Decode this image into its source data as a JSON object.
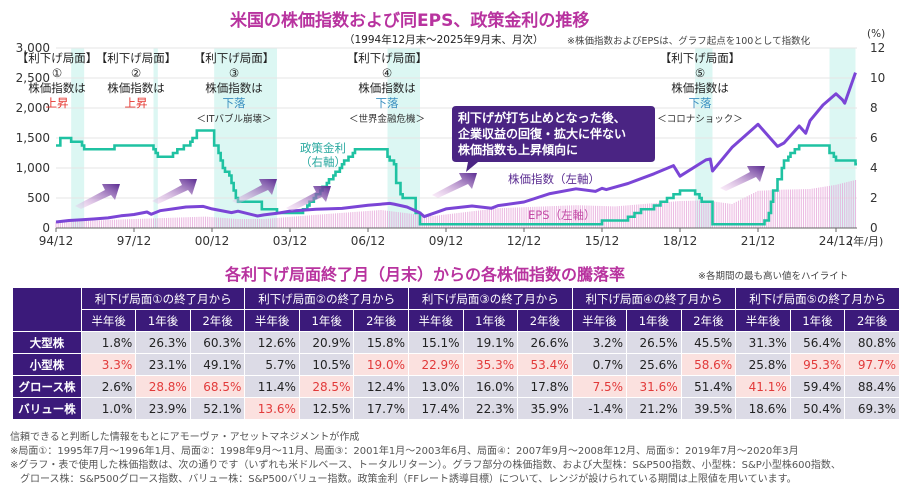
{
  "header": {
    "title": "米国の株価指数および同EPS、政策金利の推移",
    "period": "（1994年12月末～2025年9月末、月次）",
    "index_note": "※株価指数およびEPSは、グラフ起点を100として指数化"
  },
  "chart_data": {
    "type": "line",
    "left_axis": {
      "ticks": [
        "0",
        "500",
        "1,000",
        "1,500",
        "2,000",
        "2,500",
        "3,000"
      ],
      "range": [
        0,
        3000
      ]
    },
    "right_axis": {
      "label": "(%)",
      "ticks": [
        "0",
        "2",
        "4",
        "6",
        "8",
        "10",
        "12"
      ],
      "range": [
        0,
        12
      ]
    },
    "x_axis": {
      "ticks": [
        "94/12",
        "97/12",
        "00/12",
        "03/12",
        "06/12",
        "09/12",
        "12/12",
        "15/12",
        "18/12",
        "21/12",
        "24/12"
      ],
      "unit_label": "(年/月)"
    },
    "grid": true,
    "series": [
      {
        "name": "株価指数（左軸）",
        "axis": "left",
        "color": "#7b45d6",
        "kind": "line",
        "points": [
          [
            "1994-12",
            100
          ],
          [
            "1995-06",
            125
          ],
          [
            "1995-12",
            137
          ],
          [
            "1996-06",
            151
          ],
          [
            "1996-12",
            169
          ],
          [
            "1997-06",
            204
          ],
          [
            "1997-12",
            225
          ],
          [
            "1998-06",
            266
          ],
          [
            "1998-08",
            228
          ],
          [
            "1998-12",
            289
          ],
          [
            "1999-06",
            318
          ],
          [
            "1999-12",
            350
          ],
          [
            "2000-08",
            360
          ],
          [
            "2000-12",
            318
          ],
          [
            "2001-09",
            256
          ],
          [
            "2001-12",
            280
          ],
          [
            "2002-09",
            200
          ],
          [
            "2002-12",
            218
          ],
          [
            "2003-06",
            245
          ],
          [
            "2003-12",
            281
          ],
          [
            "2004-12",
            311
          ],
          [
            "2005-12",
            327
          ],
          [
            "2006-12",
            378
          ],
          [
            "2007-10",
            410
          ],
          [
            "2007-12",
            399
          ],
          [
            "2008-06",
            350
          ],
          [
            "2008-12",
            251
          ],
          [
            "2009-02",
            190
          ],
          [
            "2009-12",
            318
          ],
          [
            "2010-12",
            366
          ],
          [
            "2011-09",
            330
          ],
          [
            "2011-12",
            374
          ],
          [
            "2012-12",
            434
          ],
          [
            "2013-12",
            574
          ],
          [
            "2014-12",
            653
          ],
          [
            "2015-09",
            610
          ],
          [
            "2015-12",
            662
          ],
          [
            "2016-02",
            640
          ],
          [
            "2016-12",
            741
          ],
          [
            "2017-12",
            903
          ],
          [
            "2018-09",
            1040
          ],
          [
            "2018-12",
            863
          ],
          [
            "2019-12",
            1135
          ],
          [
            "2020-02",
            1150
          ],
          [
            "2020-03",
            950
          ],
          [
            "2020-12",
            1343
          ],
          [
            "2021-12",
            1729
          ],
          [
            "2022-09",
            1360
          ],
          [
            "2022-12",
            1416
          ],
          [
            "2023-07",
            1700
          ],
          [
            "2023-10",
            1580
          ],
          [
            "2023-12",
            1788
          ],
          [
            "2024-06",
            2050
          ],
          [
            "2024-12",
            2236
          ],
          [
            "2025-03",
            2135
          ],
          [
            "2025-04",
            2080
          ],
          [
            "2025-09",
            2590
          ]
        ]
      },
      {
        "name": "EPS（左軸）",
        "axis": "left",
        "color": "#e6a6da",
        "kind": "bars",
        "points": [
          [
            "1994-12",
            100
          ],
          [
            "1997-12",
            150
          ],
          [
            "2000-09",
            190
          ],
          [
            "2001-12",
            150
          ],
          [
            "2002-12",
            150
          ],
          [
            "2004-12",
            220
          ],
          [
            "2007-06",
            300
          ],
          [
            "2008-12",
            220
          ],
          [
            "2009-06",
            200
          ],
          [
            "2011-12",
            330
          ],
          [
            "2014-12",
            380
          ],
          [
            "2016-06",
            360
          ],
          [
            "2018-12",
            450
          ],
          [
            "2019-12",
            460
          ],
          [
            "2020-12",
            400
          ],
          [
            "2021-12",
            620
          ],
          [
            "2022-12",
            640
          ],
          [
            "2023-12",
            650
          ],
          [
            "2024-12",
            720
          ],
          [
            "2025-09",
            800
          ]
        ]
      },
      {
        "name": "政策金利（右軸）",
        "axis": "right",
        "color": "#1fc2a2",
        "kind": "step",
        "points": [
          [
            "1994-12",
            5.5
          ],
          [
            "1995-02",
            6.0
          ],
          [
            "1995-07",
            5.75
          ],
          [
            "1995-12",
            5.5
          ],
          [
            "1996-01",
            5.25
          ],
          [
            "1997-03",
            5.5
          ],
          [
            "1998-09",
            5.25
          ],
          [
            "1998-10",
            5.0
          ],
          [
            "1998-11",
            4.75
          ],
          [
            "1999-06",
            5.0
          ],
          [
            "1999-08",
            5.25
          ],
          [
            "1999-11",
            5.5
          ],
          [
            "2000-02",
            5.75
          ],
          [
            "2000-03",
            6.0
          ],
          [
            "2000-05",
            6.5
          ],
          [
            "2001-01",
            5.5
          ],
          [
            "2001-03",
            5.0
          ],
          [
            "2001-04",
            4.5
          ],
          [
            "2001-05",
            4.0
          ],
          [
            "2001-06",
            3.75
          ],
          [
            "2001-08",
            3.5
          ],
          [
            "2001-09",
            3.0
          ],
          [
            "2001-10",
            2.5
          ],
          [
            "2001-11",
            2.0
          ],
          [
            "2001-12",
            1.75
          ],
          [
            "2002-11",
            1.25
          ],
          [
            "2003-06",
            1.0
          ],
          [
            "2004-06",
            1.25
          ],
          [
            "2004-08",
            1.5
          ],
          [
            "2004-09",
            1.75
          ],
          [
            "2004-11",
            2.0
          ],
          [
            "2004-12",
            2.25
          ],
          [
            "2005-02",
            2.5
          ],
          [
            "2005-03",
            2.75
          ],
          [
            "2005-05",
            3.0
          ],
          [
            "2005-06",
            3.25
          ],
          [
            "2005-08",
            3.5
          ],
          [
            "2005-09",
            3.75
          ],
          [
            "2005-11",
            4.0
          ],
          [
            "2005-12",
            4.25
          ],
          [
            "2006-01",
            4.5
          ],
          [
            "2006-03",
            4.75
          ],
          [
            "2006-05",
            5.0
          ],
          [
            "2006-06",
            5.25
          ],
          [
            "2007-09",
            4.75
          ],
          [
            "2007-10",
            4.5
          ],
          [
            "2007-12",
            4.25
          ],
          [
            "2008-01",
            3.0
          ],
          [
            "2008-03",
            2.25
          ],
          [
            "2008-04",
            2.0
          ],
          [
            "2008-10",
            1.0
          ],
          [
            "2008-12",
            0.25
          ],
          [
            "2015-12",
            0.5
          ],
          [
            "2016-12",
            0.75
          ],
          [
            "2017-03",
            1.0
          ],
          [
            "2017-06",
            1.25
          ],
          [
            "2017-12",
            1.5
          ],
          [
            "2018-03",
            1.75
          ],
          [
            "2018-06",
            2.0
          ],
          [
            "2018-09",
            2.25
          ],
          [
            "2018-12",
            2.5
          ],
          [
            "2019-07",
            2.25
          ],
          [
            "2019-09",
            2.0
          ],
          [
            "2019-10",
            1.75
          ],
          [
            "2020-03",
            0.25
          ],
          [
            "2022-03",
            0.5
          ],
          [
            "2022-05",
            1.0
          ],
          [
            "2022-06",
            1.75
          ],
          [
            "2022-07",
            2.5
          ],
          [
            "2022-09",
            3.25
          ],
          [
            "2022-11",
            4.0
          ],
          [
            "2022-12",
            4.5
          ],
          [
            "2023-02",
            4.75
          ],
          [
            "2023-03",
            5.0
          ],
          [
            "2023-05",
            5.25
          ],
          [
            "2023-07",
            5.5
          ],
          [
            "2024-09",
            5.0
          ],
          [
            "2024-11",
            4.75
          ],
          [
            "2024-12",
            4.5
          ],
          [
            "2025-09",
            4.25
          ]
        ]
      }
    ],
    "series_labels": {
      "stock": "株価指数（左軸）",
      "eps": "EPS（左軸）",
      "rate_line1": "政策金利",
      "rate_line2": "（右軸）"
    },
    "shaded_periods": [
      {
        "start": "1995-07",
        "end": "1996-01",
        "tag": "【利下げ局面】",
        "num": "①",
        "line": "株価指数は",
        "result": "上昇",
        "result_color": "#e5362f",
        "event": ""
      },
      {
        "start": "1998-09",
        "end": "1998-11",
        "tag": "【利下げ局面】",
        "num": "②",
        "line": "株価指数は",
        "result": "上昇",
        "result_color": "#e5362f",
        "event": ""
      },
      {
        "start": "2001-01",
        "end": "2003-06",
        "tag": "【利下げ局面】",
        "num": "③",
        "line": "株価指数は",
        "result": "下落",
        "result_color": "#3a8fc0",
        "event": "＜ITバブル崩壊＞"
      },
      {
        "start": "2007-09",
        "end": "2008-12",
        "tag": "【利下げ局面】",
        "num": "④",
        "line": "株価指数は",
        "result": "下落",
        "result_color": "#3a8fc0",
        "event": "＜世界金融危機＞"
      },
      {
        "start": "2019-07",
        "end": "2020-03",
        "tag": "【利下げ局面】",
        "num": "⑤",
        "line": "株価指数は",
        "result": "下落",
        "result_color": "#3a8fc0",
        "event": "＜コロナショック＞"
      },
      {
        "start": "2024-09",
        "end": "2025-09",
        "tag": "",
        "num": "",
        "line": "",
        "result": "",
        "result_color": "",
        "event": ""
      }
    ],
    "callout": [
      "利下げが打ち止めとなった後、",
      "企業収益の回復・拡大に伴ない",
      "株価指数も上昇傾向に"
    ]
  },
  "table": {
    "title": "各利下げ局面終了月（月末）からの各株価指数の騰落率",
    "note": "※各期間の最も高い値をハイライト",
    "groups": [
      "利下げ局面①の終了月から",
      "利下げ局面②の終了月から",
      "利下げ局面③の終了月から",
      "利下げ局面④の終了月から",
      "利下げ局面⑤の終了月から"
    ],
    "subheaders": [
      "半年後",
      "1年後",
      "2年後"
    ],
    "rows": [
      {
        "label": "大型株",
        "values": [
          "1.8%",
          "26.3%",
          "60.3%",
          "12.6%",
          "20.9%",
          "15.8%",
          "15.1%",
          "19.1%",
          "26.6%",
          "3.2%",
          "26.5%",
          "45.5%",
          "31.3%",
          "56.4%",
          "80.8%"
        ],
        "highlight": [
          false,
          false,
          false,
          false,
          false,
          false,
          false,
          false,
          false,
          false,
          false,
          false,
          false,
          false,
          false
        ]
      },
      {
        "label": "小型株",
        "values": [
          "3.3%",
          "23.1%",
          "49.1%",
          "5.7%",
          "10.5%",
          "19.0%",
          "22.9%",
          "35.3%",
          "53.4%",
          "0.7%",
          "25.6%",
          "58.6%",
          "25.8%",
          "95.3%",
          "97.7%"
        ],
        "highlight": [
          true,
          false,
          false,
          false,
          false,
          true,
          true,
          true,
          true,
          false,
          false,
          true,
          false,
          true,
          true
        ]
      },
      {
        "label": "グロース株",
        "values": [
          "2.6%",
          "28.8%",
          "68.5%",
          "11.4%",
          "28.5%",
          "12.4%",
          "13.0%",
          "16.0%",
          "17.8%",
          "7.5%",
          "31.6%",
          "51.4%",
          "41.1%",
          "59.4%",
          "88.4%"
        ],
        "highlight": [
          false,
          true,
          true,
          false,
          true,
          false,
          false,
          false,
          false,
          true,
          true,
          false,
          true,
          false,
          false
        ]
      },
      {
        "label": "バリュー株",
        "values": [
          "1.0%",
          "23.9%",
          "52.1%",
          "13.6%",
          "12.5%",
          "17.7%",
          "17.4%",
          "22.3%",
          "35.9%",
          "-1.4%",
          "21.2%",
          "39.5%",
          "18.6%",
          "50.4%",
          "69.3%"
        ],
        "highlight": [
          false,
          false,
          false,
          true,
          false,
          false,
          false,
          false,
          false,
          false,
          false,
          false,
          false,
          false,
          false
        ]
      }
    ]
  },
  "footnotes": [
    "信頼できると判断した情報をもとにアモーヴァ・アセットマネジメントが作成",
    "※局面①：1995年7月～1996年1月、局面②：1998年9月～11月、局面③：2001年1月～2003年6月、局面④：2007年9月～2008年12月、局面⑤：2019年7月～2020年3月",
    "※グラフ・表で使用した株価指数は、次の通りです（いずれも米ドルベース、トータルリターン）。グラフ部分の株価指数、および大型株：S&P500指数、小型株：S&P小型株600指数、",
    "　グロース株：S&P500グロース指数、バリュー株：S&P500バリュー指数。政策金利（FFレート誘導目標）について、レンジが設けられている期間は上限値を用いています。"
  ]
}
